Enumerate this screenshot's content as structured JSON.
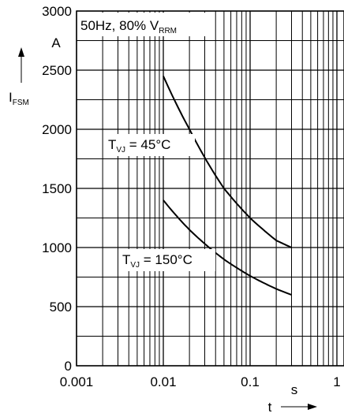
{
  "chart_data": {
    "type": "line",
    "xscale": "log",
    "xlim": [
      0.001,
      1
    ],
    "ylim": [
      0,
      3000
    ],
    "grid": true,
    "x_ticks": [
      "0.001",
      "0.01",
      "0.1",
      "1"
    ],
    "y_ticks": [
      "0",
      "500",
      "1000",
      "1500",
      "2000",
      "2500",
      "3000"
    ],
    "x_tick_values": [
      0.001,
      0.01,
      0.1,
      1
    ],
    "y_tick_values": [
      0,
      500,
      1000,
      1500,
      2000,
      2500,
      3000
    ],
    "y_unit": "A",
    "x_unit": "s",
    "xlabel": "t",
    "ylabel_main": "I",
    "ylabel_sub": "FSM",
    "annotation": {
      "main": "50Hz, 80% V",
      "sub": "RRM"
    },
    "series": [
      {
        "label_main": "T",
        "label_sub": "VJ",
        "label_rest": " = 45°C",
        "points": [
          [
            0.01,
            2450
          ],
          [
            0.02,
            2000
          ],
          [
            0.05,
            1500
          ],
          [
            0.1,
            1250
          ],
          [
            0.2,
            1060
          ],
          [
            0.3,
            1000
          ]
        ]
      },
      {
        "label_main": "T",
        "label_sub": "VJ",
        "label_rest": " = 150°C",
        "points": [
          [
            0.01,
            1400
          ],
          [
            0.02,
            1150
          ],
          [
            0.05,
            900
          ],
          [
            0.1,
            760
          ],
          [
            0.2,
            650
          ],
          [
            0.3,
            600
          ]
        ]
      }
    ]
  }
}
